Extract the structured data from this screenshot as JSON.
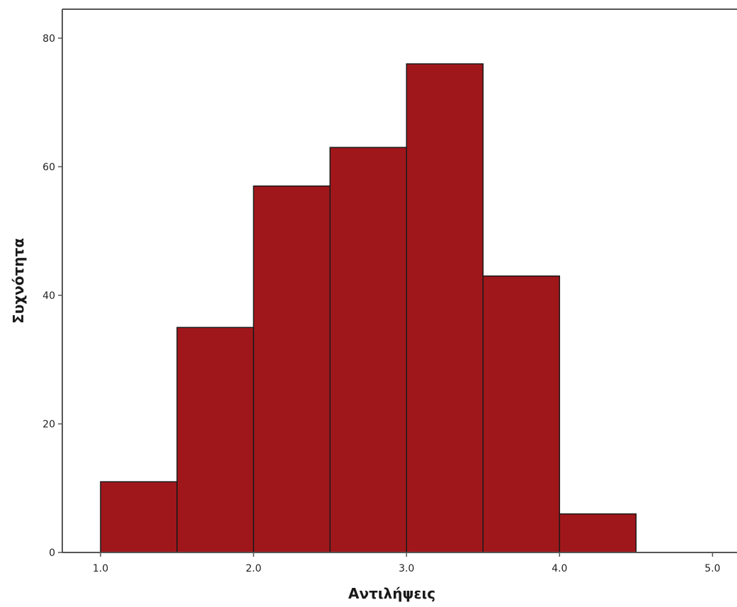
{
  "chart_data": {
    "type": "bar",
    "subtype": "histogram",
    "xlabel": "Αντιλήψεις",
    "ylabel": "Συχνότητα",
    "bins": [
      {
        "start": 1.0,
        "end": 1.5,
        "count": 11
      },
      {
        "start": 1.5,
        "end": 2.0,
        "count": 35
      },
      {
        "start": 2.0,
        "end": 2.5,
        "count": 57
      },
      {
        "start": 2.5,
        "end": 3.0,
        "count": 63
      },
      {
        "start": 3.0,
        "end": 3.5,
        "count": 76
      },
      {
        "start": 3.5,
        "end": 4.0,
        "count": 43
      },
      {
        "start": 4.0,
        "end": 4.5,
        "count": 6
      }
    ],
    "xticks": [
      "1.0",
      "2.0",
      "3.0",
      "4.0",
      "5.0"
    ],
    "yticks": [
      "0",
      "20",
      "40",
      "60",
      "80"
    ],
    "xlim": [
      0.75,
      5.16
    ],
    "ylim": [
      0,
      84.5
    ],
    "grid": false,
    "bar_color": "#a0171b",
    "edge_color": "#1a1a1a"
  }
}
